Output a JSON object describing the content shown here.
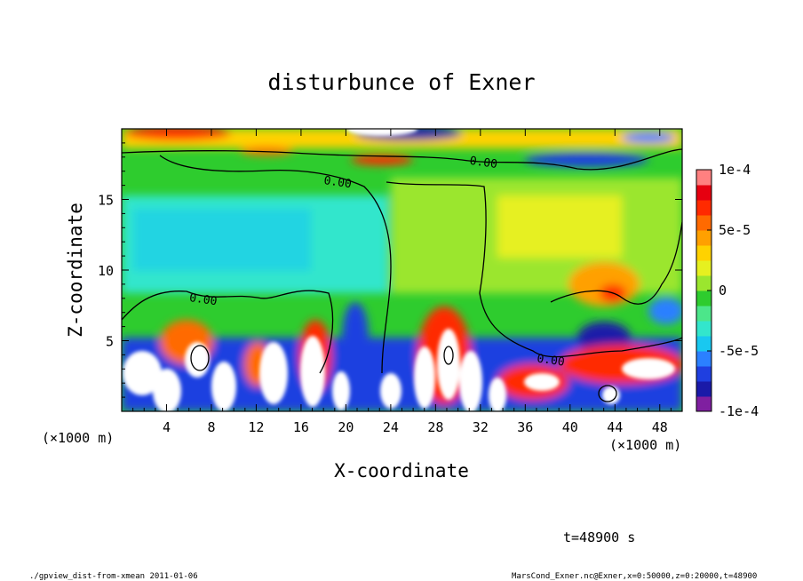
{
  "chart_data": {
    "type": "heatmap",
    "title": "disturbunce of Exner",
    "xlabel": "X-coordinate",
    "ylabel": "Z-coordinate",
    "x_unit_left": "(×1000 m)",
    "x_unit_right": "(×1000 m)",
    "xlim": [
      0,
      50
    ],
    "ylim": [
      0,
      20
    ],
    "x_ticks": [
      4,
      8,
      12,
      16,
      20,
      24,
      28,
      32,
      36,
      40,
      44,
      48
    ],
    "y_ticks": [
      5,
      10,
      15
    ],
    "colorbar": {
      "range": [
        -0.0001,
        0.0001
      ],
      "tick_values": [
        0.0001,
        5e-05,
        0,
        -5e-05,
        -0.0001
      ],
      "tick_labels": [
        "1e-4",
        "5e-5",
        "0",
        "-5e-5",
        "-1e-4"
      ],
      "colors": [
        "#7f1fa0",
        "#1a1aa8",
        "#1f3fe0",
        "#2b80ff",
        "#19c8f0",
        "#33e6cc",
        "#4ce68a",
        "#2ecc2e",
        "#9be62e",
        "#e6f020",
        "#ffd200",
        "#ffa000",
        "#ff6a00",
        "#ff2a00",
        "#e60010",
        "#ff8080"
      ]
    },
    "contour_labels": [
      "0.00",
      "0.00",
      "0.00",
      "0.00"
    ],
    "time_label": "t=48900 s",
    "footer_left": "./gpview_dist-from-xmean  2011-01-06",
    "footer_right": "MarsCond_Exner.nc@Exner,x=0:50000,z=0:20000,t=48900"
  }
}
